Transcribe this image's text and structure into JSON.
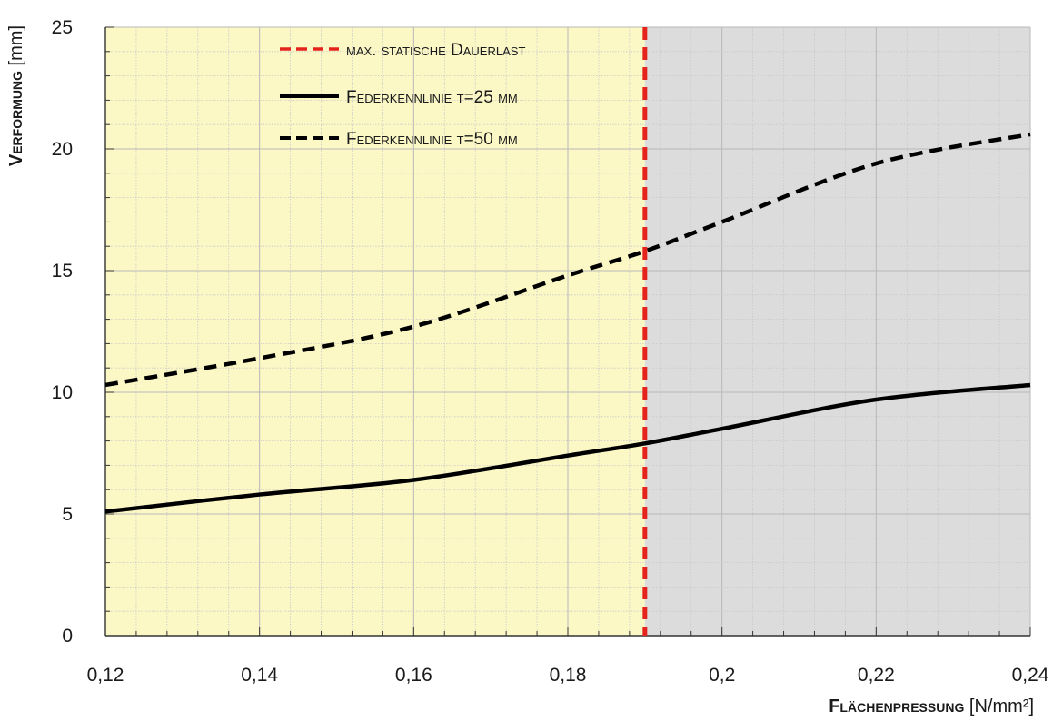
{
  "chart_data": {
    "type": "line",
    "title": "",
    "xlabel_main": "Flächenpressung",
    "xlabel_unit": "[N/mm²]",
    "ylabel_main": "Verformung",
    "ylabel_unit": "[mm]",
    "xlim": [
      0.12,
      0.24
    ],
    "ylim": [
      0,
      25
    ],
    "x_ticks": [
      "0,12",
      "0,14",
      "0,16",
      "0,18",
      "0,2",
      "0,22",
      "0,24"
    ],
    "y_ticks": [
      "0",
      "5",
      "10",
      "15",
      "20",
      "25"
    ],
    "grid": true,
    "regions": [
      {
        "name": "below-limit",
        "x_start": 0.12,
        "x_end": 0.19,
        "color": "#fbf8c6"
      },
      {
        "name": "above-limit",
        "x_start": 0.19,
        "x_end": 0.24,
        "color": "#dcdcdc"
      }
    ],
    "vline": {
      "name": "max. statische Dauerlast",
      "x": 0.19,
      "color": "#e4231c"
    },
    "series": [
      {
        "name": "Federkennlinie t=25 mm",
        "style": "solid",
        "color": "#000000",
        "x": [
          0.12,
          0.14,
          0.16,
          0.18,
          0.19,
          0.2,
          0.22,
          0.24
        ],
        "y": [
          5.1,
          5.8,
          6.4,
          7.4,
          7.9,
          8.5,
          9.7,
          10.3
        ]
      },
      {
        "name": "Federkennlinie t=50 mm",
        "style": "dashed",
        "color": "#000000",
        "x": [
          0.12,
          0.14,
          0.16,
          0.18,
          0.19,
          0.2,
          0.22,
          0.24
        ],
        "y": [
          10.3,
          11.4,
          12.7,
          14.8,
          15.8,
          17.0,
          19.4,
          20.6
        ]
      }
    ],
    "legend": {
      "position": "top-center",
      "items": [
        {
          "label": "max. statische Dauerlast",
          "style": "dashed",
          "color": "#e4231c"
        },
        {
          "label": "Federkennlinie t=25 mm",
          "style": "solid",
          "color": "#000000"
        },
        {
          "label": "Federkennlinie t=50 mm",
          "style": "dashed",
          "color": "#000000"
        }
      ]
    }
  }
}
